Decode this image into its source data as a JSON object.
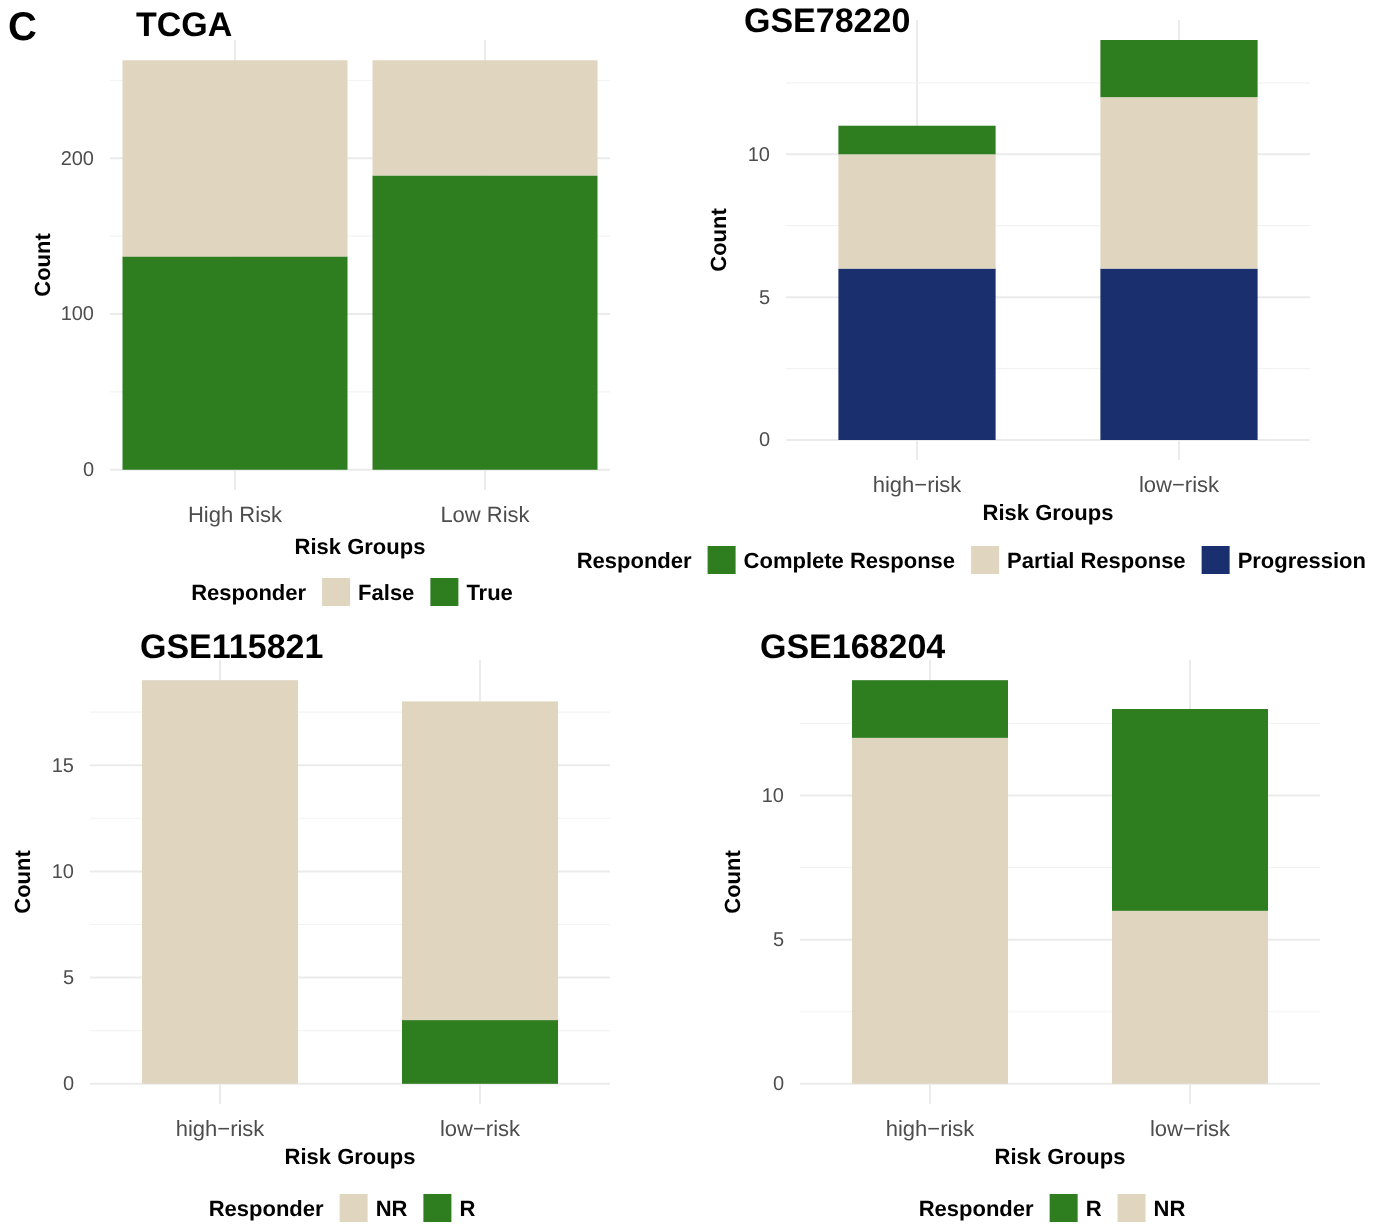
{
  "chart_data": [
    {
      "type": "bar",
      "stacked": true,
      "title": "TCGA",
      "annotations": [
        "C"
      ],
      "xlabel": "Risk Groups",
      "ylabel": "Count",
      "legend_title": "Responder",
      "categories": [
        "High Risk",
        "Low Risk"
      ],
      "series": [
        {
          "name": "True",
          "color": "#2e7d1f",
          "values": [
            137,
            189
          ]
        },
        {
          "name": "False",
          "color": "#e0d6c0",
          "values": [
            126,
            74
          ]
        }
      ],
      "ylim": [
        -13,
        276
      ],
      "yticks": [
        0,
        {
          "value": 50,
          "label": null
        },
        100,
        {
          "value": 150,
          "label": null
        },
        200,
        {
          "value": 250,
          "label": null
        }
      ],
      "grid": true,
      "legend": "bottom"
    },
    {
      "type": "bar",
      "stacked": true,
      "title": "GSE78220",
      "xlabel": "Risk Groups",
      "ylabel": "Count",
      "legend_title": "Responder",
      "categories": [
        "high−risk",
        "low−risk"
      ],
      "series": [
        {
          "name": "Progression",
          "color": "#1a2f6e",
          "values": [
            6,
            6
          ]
        },
        {
          "name": "Partial Response",
          "color": "#e0d6c0",
          "values": [
            4,
            6
          ]
        },
        {
          "name": "Complete Response",
          "color": "#2e7d1f",
          "values": [
            1,
            2
          ]
        }
      ],
      "ylim": [
        -0.7,
        14.7
      ],
      "yticks": [
        0,
        {
          "value": 2.5,
          "label": null
        },
        5,
        {
          "value": 7.5,
          "label": null
        },
        10,
        {
          "value": 12.5,
          "label": null
        }
      ],
      "grid": true,
      "legend": "bottom"
    },
    {
      "type": "bar",
      "stacked": true,
      "title": "GSE115821",
      "xlabel": "Risk Groups",
      "ylabel": "Count",
      "legend_title": "Responder",
      "categories": [
        "high−risk",
        "low−risk"
      ],
      "series": [
        {
          "name": "R",
          "color": "#2e7d1f",
          "values": [
            0,
            3
          ]
        },
        {
          "name": "NR",
          "color": "#e0d6c0",
          "values": [
            19,
            15
          ]
        }
      ],
      "ylim": [
        -0.95,
        19.95
      ],
      "yticks": [
        0,
        {
          "value": 2.5,
          "label": null
        },
        5,
        {
          "value": 7.5,
          "label": null
        },
        10,
        {
          "value": 12.5,
          "label": null
        },
        15,
        {
          "value": 17.5,
          "label": null
        }
      ],
      "grid": true,
      "legend": "bottom"
    },
    {
      "type": "bar",
      "stacked": true,
      "title": "GSE168204",
      "xlabel": "Risk Groups",
      "ylabel": "Count",
      "legend_title": "Responder",
      "categories": [
        "high−risk",
        "low−risk"
      ],
      "series": [
        {
          "name": "NR",
          "color": "#e0d6c0",
          "values": [
            12,
            6
          ]
        },
        {
          "name": "R",
          "color": "#2e7d1f",
          "values": [
            2,
            7
          ]
        }
      ],
      "ylim": [
        -0.7,
        14.7
      ],
      "yticks": [
        0,
        {
          "value": 2.5,
          "label": null
        },
        5,
        {
          "value": 7.5,
          "label": null
        },
        10,
        {
          "value": 12.5,
          "label": null
        }
      ],
      "grid": true,
      "legend": "bottom"
    }
  ]
}
